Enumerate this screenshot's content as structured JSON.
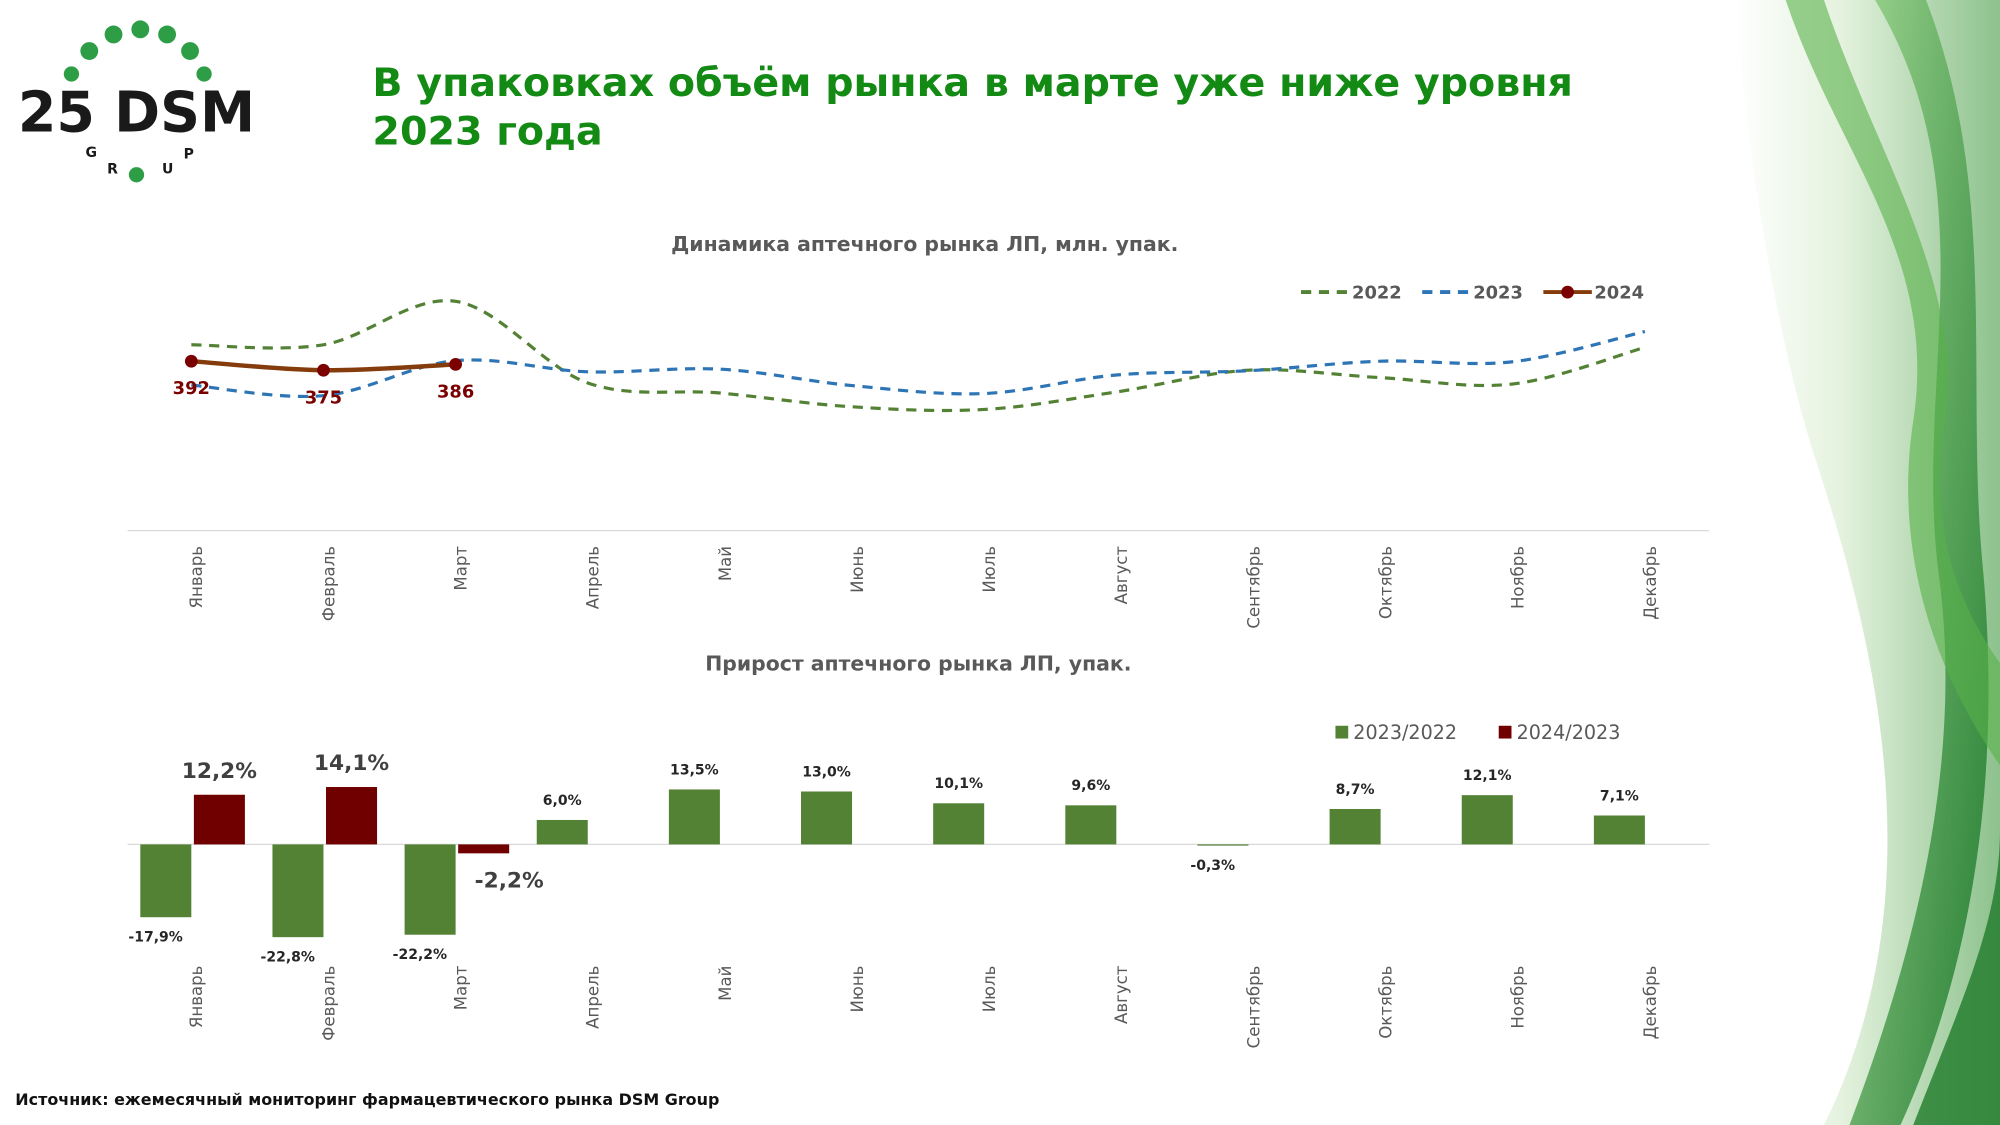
{
  "header": {
    "title_lines": [
      "В упаковках объём рынка в марте уже ниже уровня",
      "2023 года"
    ]
  },
  "logo": {
    "text": "25 DSM",
    "letters": [
      "G",
      "R",
      "U",
      "P"
    ]
  },
  "source": "Источник: ежемесячный мониторинг фармацевтического рынка DSM Group",
  "chart_data": [
    {
      "type": "line",
      "title": "Динамика аптечного рынка ЛП, млн. упак.",
      "categories": [
        "Январь",
        "Февраль",
        "Март",
        "Апрель",
        "Май",
        "Июнь",
        "Июль",
        "Август",
        "Сентябрь",
        "Октябрь",
        "Ноябрь",
        "Декабрь"
      ],
      "legend": "top-right",
      "series": [
        {
          "name": "2022",
          "color": "#548235",
          "dashed": true,
          "values": [
            423,
            423,
            505,
            351,
            332,
            306,
            301,
            334,
            375,
            361,
            349,
            418
          ]
        },
        {
          "name": "2023",
          "color": "#2e75b6",
          "dashed": true,
          "values": [
            347,
            327,
            393,
            372,
            377,
            346,
            331,
            366,
            374,
            392,
            391,
            448
          ]
        },
        {
          "name": "2024",
          "color": "#843c0c",
          "marker_color": "#7b0000",
          "dashed": false,
          "values": [
            392,
            375,
            386,
            null,
            null,
            null,
            null,
            null,
            null,
            null,
            null,
            null
          ],
          "show_labels": true
        }
      ]
    },
    {
      "type": "bar",
      "title": "Прирост аптечного рынка ЛП, упак.",
      "categories": [
        "Январь",
        "Февраль",
        "Март",
        "Апрель",
        "Май",
        "Июнь",
        "Июль",
        "Август",
        "Сентябрь",
        "Октябрь",
        "Ноябрь",
        "Декабрь"
      ],
      "legend": "top-right",
      "series": [
        {
          "name": "2023/2022",
          "color": "#548235",
          "values": [
            -17.9,
            -22.8,
            -22.2,
            6.0,
            13.5,
            13.0,
            10.1,
            9.6,
            -0.3,
            8.7,
            12.1,
            7.1
          ],
          "value_labels": [
            "-17,9%",
            "-22,8%",
            "-22,2%",
            "6,0%",
            "13,5%",
            "13,0%",
            "10,1%",
            "9,6%",
            "-0,3%",
            "8,7%",
            "12,1%",
            "7,1%"
          ]
        },
        {
          "name": "2024/2023",
          "color": "#700000",
          "values": [
            12.2,
            14.1,
            -2.2,
            null,
            null,
            null,
            null,
            null,
            null,
            null,
            null,
            null
          ],
          "value_labels": [
            "12,2%",
            "14,1%",
            "-2,2%",
            null,
            null,
            null,
            null,
            null,
            null,
            null,
            null,
            null
          ]
        }
      ]
    }
  ]
}
